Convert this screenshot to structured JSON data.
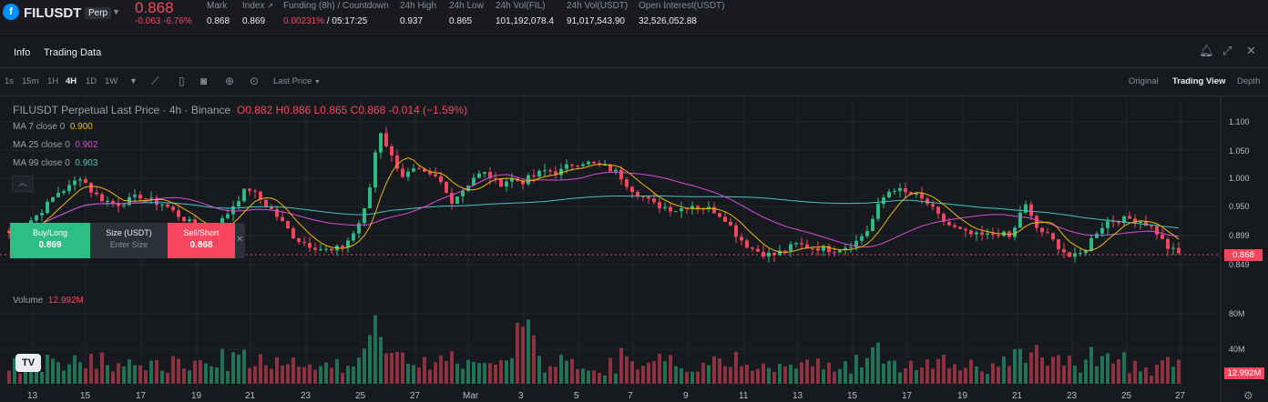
{
  "header": {
    "coin_icon": "f",
    "symbol": "FILUSDT",
    "badge": "Perp",
    "last_price": "0.868",
    "change": "-0.063 -6.76%",
    "stats": [
      {
        "label": "Mark",
        "value": "0.868"
      },
      {
        "label": "Index",
        "value": "0.869"
      },
      {
        "label": "Funding (8h) / Countdown",
        "value": "0.00231%",
        "value2": " / 05:17:25"
      },
      {
        "label": "24h High",
        "value": "0.937"
      },
      {
        "label": "24h Low",
        "value": "0.865"
      },
      {
        "label": "24h Vol(FIL)",
        "value": "101,192,078.4"
      },
      {
        "label": "24h Vol(USDT)",
        "value": "91,017,543.90"
      },
      {
        "label": "Open Interest(USDT)",
        "value": "32,526,052.88"
      }
    ]
  },
  "tabs": [
    "Info",
    "Trading Data"
  ],
  "toolbar": {
    "timeframes": [
      "1s",
      "15m",
      "1H",
      "4H",
      "1D",
      "1W"
    ],
    "active_timeframe": "4H",
    "price_type": "Last Price",
    "views": [
      "Original",
      "Trading View",
      "Depth"
    ],
    "active_view": "Trading View"
  },
  "legend": {
    "title": "FILUSDT Perpetual Last Price · 4h · Binance",
    "ohlc": "O0.882 H0.886 L0.865 C0.868 -0.014 (−1.59%)",
    "ma": [
      {
        "label": "MA 7 close 0",
        "value": "0.900",
        "color": "#f0b90b"
      },
      {
        "label": "MA 25 close 0",
        "value": "0.902",
        "color": "#d84bd8"
      },
      {
        "label": "MA 99 close 0",
        "value": "0.903",
        "color": "#48c2c0"
      }
    ]
  },
  "order_widget": {
    "buy_label": "Buy/Long",
    "buy_price": "0.869",
    "size_label": "Size (USDT)",
    "size_placeholder": "Enter Size",
    "sell_label": "Sell/Short",
    "sell_price": "0.868"
  },
  "chart_data": {
    "type": "candlestick",
    "price_axis": [
      "1.100",
      "1.050",
      "1.000",
      "0.950",
      "0.899",
      "0.849"
    ],
    "current_price": "0.868",
    "volume_title": "Volume",
    "volume_value": "12.992M",
    "volume_axis": [
      "80M",
      "40M"
    ],
    "current_volume": "12.992M",
    "x_labels": [
      "13",
      "15",
      "17",
      "19",
      "21",
      "23",
      "25",
      "27",
      "Mar",
      "3",
      "5",
      "7",
      "9",
      "11",
      "13",
      "15",
      "17",
      "19",
      "21",
      "23",
      "25",
      "27"
    ],
    "close_path": [
      0.905,
      0.915,
      0.93,
      0.95,
      0.975,
      0.985,
      1.005,
      0.975,
      0.962,
      0.955,
      0.962,
      0.97,
      0.96,
      0.955,
      0.938,
      0.925,
      0.905,
      0.912,
      0.93,
      0.96,
      0.985,
      0.965,
      0.945,
      0.92,
      0.895,
      0.885,
      0.878,
      0.872,
      0.882,
      0.908,
      0.955,
      1.09,
      1.04,
      1.005,
      1.015,
      1.005,
      1.0,
      0.96,
      0.98,
      1.005,
      1.01,
      0.99,
      1.0,
      0.995,
      1.005,
      1.015,
      1.01,
      1.025,
      1.03,
      1.025,
      1.02,
      1.01,
      0.985,
      0.97,
      0.955,
      0.95,
      0.945,
      0.955,
      0.95,
      0.945,
      0.93,
      0.9,
      0.88,
      0.87,
      0.865,
      0.875,
      0.885,
      0.88,
      0.878,
      0.875,
      0.88,
      0.89,
      0.912,
      0.96,
      0.985,
      0.975,
      0.97,
      0.955,
      0.93,
      0.915,
      0.905,
      0.9,
      0.9,
      0.905,
      0.895,
      0.96,
      0.915,
      0.9,
      0.88,
      0.86,
      0.87,
      0.905,
      0.925,
      0.928,
      0.93,
      0.925,
      0.91,
      0.88,
      0.868
    ]
  }
}
